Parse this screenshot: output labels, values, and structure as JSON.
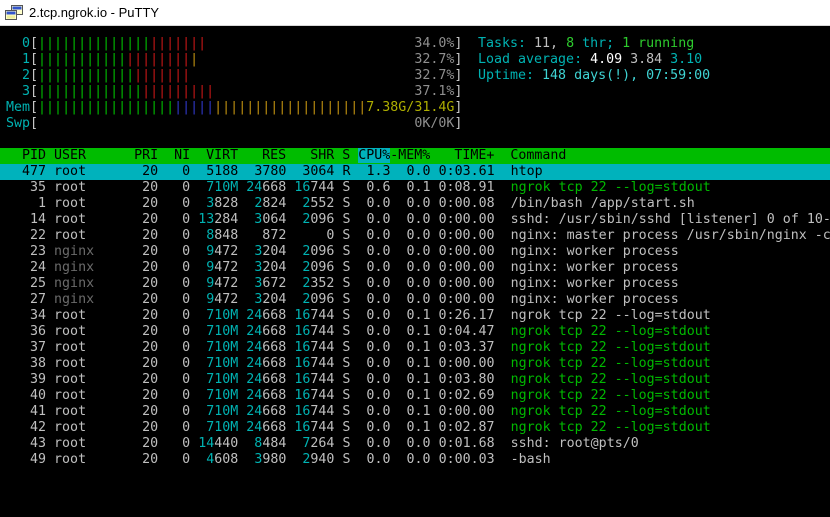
{
  "window": {
    "title": "2.tcp.ngrok.io - PuTTY"
  },
  "colors": {
    "caption": "#00b2b2",
    "bracket": "#c8c8c8",
    "pct": "#8f8f8f",
    "fg": "#bfbfbf",
    "bold": "#ffffff",
    "shadow": "#6b6b6b",
    "green": "#00b800",
    "greenBright": "#2ecc2e",
    "cyan": "#00b2b2",
    "cyanBright": "#3fd4d4",
    "barGreen": "#00bc00",
    "barRed": "#c41616",
    "barYellow": "#c09010",
    "barBlue": "#3038c8",
    "memText": "#aeae00",
    "selBg": "#00b2bc",
    "selFg": "#000000",
    "headerBg": "#00bc00",
    "headerFg": "#000000",
    "sortBg": "#00b2bc"
  },
  "meters": {
    "bar_char": "|",
    "inner_width": 52,
    "cpu": [
      {
        "label": "  0",
        "pct": "34.0%",
        "segments": [
          [
            "green",
            14
          ],
          [
            "red",
            7
          ]
        ]
      },
      {
        "label": "  1",
        "pct": "32.7%",
        "segments": [
          [
            "green",
            11
          ],
          [
            "red",
            8
          ],
          [
            "yellow",
            1
          ]
        ]
      },
      {
        "label": "  2",
        "pct": "32.7%",
        "segments": [
          [
            "green",
            12
          ],
          [
            "red",
            7
          ]
        ]
      },
      {
        "label": "  3",
        "pct": "37.1%",
        "segments": [
          [
            "green",
            13
          ],
          [
            "red",
            9
          ]
        ]
      }
    ],
    "mem": {
      "label": "Mem",
      "text": "7.38G/31.4G",
      "segments": [
        [
          "green",
          17
        ],
        [
          "blue",
          5
        ],
        [
          "yellow",
          19
        ]
      ]
    },
    "swp": {
      "label": "Swp",
      "text": "0K/0K",
      "segments": []
    }
  },
  "summary": {
    "tasks": [
      [
        "Tasks: ",
        "caption"
      ],
      [
        "11, ",
        "fg"
      ],
      [
        "8",
        "greenBright"
      ],
      [
        " thr; ",
        "caption"
      ],
      [
        "1",
        "greenBright"
      ],
      [
        " running",
        "greenBright"
      ]
    ],
    "load": [
      [
        "Load average: ",
        "caption"
      ],
      [
        "4.09 ",
        "bold"
      ],
      [
        "3.84 ",
        "fg"
      ],
      [
        "3.10",
        "cyan"
      ]
    ],
    "uptime": [
      [
        "Uptime: ",
        "caption"
      ],
      [
        "148 days(!), 07:59:00",
        "cyanBright"
      ]
    ]
  },
  "table": {
    "header": {
      "pre": "  PID USER      PRI  NI  VIRT   RES   SHR S ",
      "sort": "CPU%",
      "post": "-MEM%   TIME+  Command"
    },
    "rows": [
      {
        "pid": "477",
        "user": "root",
        "pri": "20",
        "ni": "0",
        "virt": "5188",
        "res": "3780",
        "shr": "3064",
        "s": "R",
        "cpu": "1.3",
        "mem": "0.0",
        "time": "0:03.61",
        "cmd": "htop",
        "selected": true
      },
      {
        "pid": "35",
        "user": "root",
        "pri": "20",
        "ni": "0",
        "virt": "710M",
        "res": "24668",
        "shr": "16744",
        "s": "S",
        "cpu": "0.6",
        "mem": "0.1",
        "time": "0:08.91",
        "cmd": "ngrok tcp 22 --log=stdout",
        "thread": true
      },
      {
        "pid": "1",
        "user": "root",
        "pri": "20",
        "ni": "0",
        "virt": "3828",
        "res": "2824",
        "shr": "2552",
        "s": "S",
        "cpu": "0.0",
        "mem": "0.0",
        "time": "0:00.08",
        "cmd": "/bin/bash /app/start.sh"
      },
      {
        "pid": "14",
        "user": "root",
        "pri": "20",
        "ni": "0",
        "virt": "13284",
        "res": "3064",
        "shr": "2096",
        "s": "S",
        "cpu": "0.0",
        "mem": "0.0",
        "time": "0:00.00",
        "cmd": "sshd: /usr/sbin/sshd [listener] 0 of 10-"
      },
      {
        "pid": "22",
        "user": "root",
        "pri": "20",
        "ni": "0",
        "virt": "8848",
        "res": "872",
        "shr": "0",
        "s": "S",
        "cpu": "0.0",
        "mem": "0.0",
        "time": "0:00.00",
        "cmd": "nginx: master process /usr/sbin/nginx -c"
      },
      {
        "pid": "23",
        "user": "nginx",
        "pri": "20",
        "ni": "0",
        "virt": "9472",
        "res": "3204",
        "shr": "2096",
        "s": "S",
        "cpu": "0.0",
        "mem": "0.0",
        "time": "0:00.00",
        "cmd": "nginx: worker process",
        "dim_user": true
      },
      {
        "pid": "24",
        "user": "nginx",
        "pri": "20",
        "ni": "0",
        "virt": "9472",
        "res": "3204",
        "shr": "2096",
        "s": "S",
        "cpu": "0.0",
        "mem": "0.0",
        "time": "0:00.00",
        "cmd": "nginx: worker process",
        "dim_user": true
      },
      {
        "pid": "25",
        "user": "nginx",
        "pri": "20",
        "ni": "0",
        "virt": "9472",
        "res": "3672",
        "shr": "2352",
        "s": "S",
        "cpu": "0.0",
        "mem": "0.0",
        "time": "0:00.00",
        "cmd": "nginx: worker process",
        "dim_user": true
      },
      {
        "pid": "27",
        "user": "nginx",
        "pri": "20",
        "ni": "0",
        "virt": "9472",
        "res": "3204",
        "shr": "2096",
        "s": "S",
        "cpu": "0.0",
        "mem": "0.0",
        "time": "0:00.00",
        "cmd": "nginx: worker process",
        "dim_user": true
      },
      {
        "pid": "34",
        "user": "root",
        "pri": "20",
        "ni": "0",
        "virt": "710M",
        "res": "24668",
        "shr": "16744",
        "s": "S",
        "cpu": "0.0",
        "mem": "0.1",
        "time": "0:26.17",
        "cmd": "ngrok tcp 22 --log=stdout"
      },
      {
        "pid": "36",
        "user": "root",
        "pri": "20",
        "ni": "0",
        "virt": "710M",
        "res": "24668",
        "shr": "16744",
        "s": "S",
        "cpu": "0.0",
        "mem": "0.1",
        "time": "0:04.47",
        "cmd": "ngrok tcp 22 --log=stdout",
        "thread": true
      },
      {
        "pid": "37",
        "user": "root",
        "pri": "20",
        "ni": "0",
        "virt": "710M",
        "res": "24668",
        "shr": "16744",
        "s": "S",
        "cpu": "0.0",
        "mem": "0.1",
        "time": "0:03.37",
        "cmd": "ngrok tcp 22 --log=stdout",
        "thread": true
      },
      {
        "pid": "38",
        "user": "root",
        "pri": "20",
        "ni": "0",
        "virt": "710M",
        "res": "24668",
        "shr": "16744",
        "s": "S",
        "cpu": "0.0",
        "mem": "0.1",
        "time": "0:00.00",
        "cmd": "ngrok tcp 22 --log=stdout",
        "thread": true
      },
      {
        "pid": "39",
        "user": "root",
        "pri": "20",
        "ni": "0",
        "virt": "710M",
        "res": "24668",
        "shr": "16744",
        "s": "S",
        "cpu": "0.0",
        "mem": "0.1",
        "time": "0:03.80",
        "cmd": "ngrok tcp 22 --log=stdout",
        "thread": true
      },
      {
        "pid": "40",
        "user": "root",
        "pri": "20",
        "ni": "0",
        "virt": "710M",
        "res": "24668",
        "shr": "16744",
        "s": "S",
        "cpu": "0.0",
        "mem": "0.1",
        "time": "0:02.69",
        "cmd": "ngrok tcp 22 --log=stdout",
        "thread": true
      },
      {
        "pid": "41",
        "user": "root",
        "pri": "20",
        "ni": "0",
        "virt": "710M",
        "res": "24668",
        "shr": "16744",
        "s": "S",
        "cpu": "0.0",
        "mem": "0.1",
        "time": "0:00.00",
        "cmd": "ngrok tcp 22 --log=stdout",
        "thread": true
      },
      {
        "pid": "42",
        "user": "root",
        "pri": "20",
        "ni": "0",
        "virt": "710M",
        "res": "24668",
        "shr": "16744",
        "s": "S",
        "cpu": "0.0",
        "mem": "0.1",
        "time": "0:02.87",
        "cmd": "ngrok tcp 22 --log=stdout",
        "thread": true
      },
      {
        "pid": "43",
        "user": "root",
        "pri": "20",
        "ni": "0",
        "virt": "14440",
        "res": "8484",
        "shr": "7264",
        "s": "S",
        "cpu": "0.0",
        "mem": "0.0",
        "time": "0:01.68",
        "cmd": "sshd: root@pts/0"
      },
      {
        "pid": "49",
        "user": "root",
        "pri": "20",
        "ni": "0",
        "virt": "4608",
        "res": "3980",
        "shr": "2940",
        "s": "S",
        "cpu": "0.0",
        "mem": "0.0",
        "time": "0:00.03",
        "cmd": "-bash"
      }
    ]
  }
}
